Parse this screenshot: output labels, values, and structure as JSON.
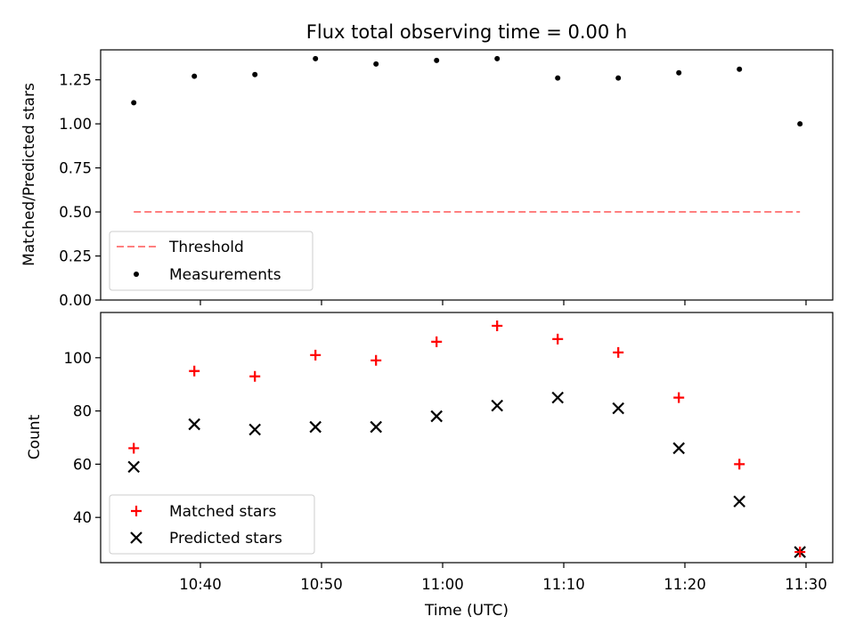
{
  "chart_data": [
    {
      "type": "scatter",
      "title": "Flux total observing time = 0.00 h",
      "ylabel": "Matched/Predicted stars",
      "xlabel": "",
      "ylim": [
        0.0,
        1.42
      ],
      "yticks": [
        "0.00",
        "0.25",
        "0.50",
        "0.75",
        "1.00",
        "1.25"
      ],
      "x": [
        "10:34:30",
        "10:39:30",
        "10:44:30",
        "10:49:30",
        "10:54:30",
        "10:59:30",
        "11:04:30",
        "11:09:30",
        "11:14:30",
        "11:19:30",
        "11:24:30",
        "11:29:30"
      ],
      "series": [
        {
          "name": "Measurements",
          "marker": "dot",
          "color": "#000000",
          "values": [
            1.12,
            1.27,
            1.28,
            1.37,
            1.34,
            1.36,
            1.37,
            1.26,
            1.26,
            1.29,
            1.31,
            1.0
          ]
        }
      ],
      "threshold": {
        "name": "Threshold",
        "value": 0.5,
        "color": "#ff7f7f",
        "style": "dashed"
      },
      "legend_position": "lower-left",
      "grid": false
    },
    {
      "type": "scatter",
      "title": "",
      "ylabel": "Count",
      "xlabel": "Time (UTC)",
      "ylim": [
        23,
        117
      ],
      "yticks": [
        "40",
        "60",
        "80",
        "100"
      ],
      "xticks": [
        "10:40",
        "10:50",
        "11:00",
        "11:10",
        "11:20",
        "11:30"
      ],
      "x": [
        "10:34:30",
        "10:39:30",
        "10:44:30",
        "10:49:30",
        "10:54:30",
        "10:59:30",
        "11:04:30",
        "11:09:30",
        "11:14:30",
        "11:19:30",
        "11:24:30",
        "11:29:30"
      ],
      "series": [
        {
          "name": "Matched stars",
          "marker": "plus",
          "color": "#ff0000",
          "values": [
            66,
            95,
            93,
            101,
            99,
            106,
            112,
            107,
            102,
            85,
            60,
            27
          ]
        },
        {
          "name": "Predicted stars",
          "marker": "x",
          "color": "#000000",
          "values": [
            59,
            75,
            73,
            74,
            74,
            78,
            82,
            85,
            81,
            66,
            46,
            27
          ]
        }
      ],
      "legend_position": "lower-left",
      "grid": false
    }
  ]
}
